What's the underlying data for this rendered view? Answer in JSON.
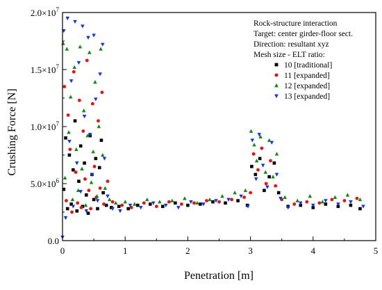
{
  "chart_data": {
    "type": "scatter",
    "title": "",
    "xlabel": "Penetration [m]",
    "ylabel": "Crushing Force [N]",
    "xlim": [
      0,
      5
    ],
    "ylim": [
      0,
      20000000
    ],
    "x_ticks": [
      {
        "value": 0,
        "label": "0"
      },
      {
        "value": 1,
        "label": "1"
      },
      {
        "value": 2,
        "label": "2"
      },
      {
        "value": 3,
        "label": "3"
      },
      {
        "value": 4,
        "label": "4"
      },
      {
        "value": 5,
        "label": "5"
      }
    ],
    "y_ticks": [
      {
        "value": 0,
        "mantissa": "0.0",
        "exp": ""
      },
      {
        "value": 5000000,
        "mantissa": "5.0×10",
        "exp": "6"
      },
      {
        "value": 10000000,
        "mantissa": "1.0×10",
        "exp": "7"
      },
      {
        "value": 15000000,
        "mantissa": "1.5×10",
        "exp": "7"
      },
      {
        "value": 20000000,
        "mantissa": "2.0×10",
        "exp": "7"
      }
    ],
    "grid": false,
    "legend_position": "top-right",
    "annotation_lines": [
      "Rock-structure interaction",
      "Target: center girder-floor sect.",
      "Direction: resultant xyz",
      "Mesh size - ELT ratio:"
    ],
    "series": [
      {
        "name": "10 [traditional]",
        "color": "#000000",
        "marker": "square",
        "x": [
          0.02,
          0.05,
          0.08,
          0.11,
          0.14,
          0.17,
          0.2,
          0.23,
          0.26,
          0.29,
          0.32,
          0.35,
          0.38,
          0.41,
          0.44,
          0.47,
          0.5,
          0.53,
          0.56,
          0.59,
          0.62,
          0.65,
          0.7,
          0.78,
          0.9,
          1.05,
          1.2,
          1.4,
          1.6,
          1.8,
          2.0,
          2.2,
          2.4,
          2.6,
          2.8,
          2.95,
          3.02,
          3.08,
          3.15,
          3.22,
          3.3,
          3.38,
          3.45,
          3.6,
          3.8,
          4.0,
          4.2,
          4.4,
          4.6,
          4.75
        ],
        "y": [
          4500000,
          9000000,
          2800000,
          7500000,
          3200000,
          6200000,
          10500000,
          2600000,
          5200000,
          8300000,
          3000000,
          6800000,
          4000000,
          2400000,
          9200000,
          5800000,
          3600000,
          7200000,
          2800000,
          6400000,
          8800000,
          4200000,
          3100000,
          2900000,
          3000000,
          2800000,
          3100000,
          3200000,
          3000000,
          3300000,
          3100000,
          3200000,
          3400000,
          3300000,
          3500000,
          3100000,
          6500000,
          5800000,
          7200000,
          4400000,
          5600000,
          6800000,
          4200000,
          3000000,
          3100000,
          2900000,
          3200000,
          3000000,
          3100000,
          2800000
        ]
      },
      {
        "name": "11 [expanded]",
        "color": "#ee1111",
        "marker": "circle",
        "x": [
          0.03,
          0.06,
          0.09,
          0.12,
          0.15,
          0.18,
          0.21,
          0.24,
          0.27,
          0.3,
          0.33,
          0.36,
          0.39,
          0.42,
          0.45,
          0.48,
          0.51,
          0.54,
          0.57,
          0.6,
          0.63,
          0.66,
          0.72,
          0.8,
          0.95,
          1.1,
          1.3,
          1.5,
          1.7,
          1.9,
          2.1,
          2.3,
          2.5,
          2.7,
          2.9,
          3.0,
          3.05,
          3.12,
          3.18,
          3.25,
          3.32,
          3.4,
          3.5,
          3.7,
          3.9,
          4.1,
          4.3,
          4.5,
          4.7
        ],
        "y": [
          13500000,
          3500000,
          11000000,
          8000000,
          2500000,
          14800000,
          6000000,
          3300000,
          12300000,
          2900000,
          9600000,
          5400000,
          15800000,
          4400000,
          2800000,
          12000000,
          6500000,
          3800000,
          10500000,
          4600000,
          13000000,
          3200000,
          5200000,
          3400000,
          3100000,
          2900000,
          3300000,
          3000000,
          3400000,
          3200000,
          3300000,
          3500000,
          3400000,
          3600000,
          3800000,
          4200000,
          7600000,
          6200000,
          8100000,
          5000000,
          7000000,
          4800000,
          3600000,
          3200000,
          3400000,
          3300000,
          3600000,
          3500000,
          3700000
        ]
      },
      {
        "name": "12 [expanded]",
        "color": "#118811",
        "marker": "triangle-up",
        "x": [
          0.01,
          0.04,
          0.07,
          0.1,
          0.13,
          0.16,
          0.19,
          0.22,
          0.25,
          0.28,
          0.31,
          0.34,
          0.37,
          0.4,
          0.43,
          0.46,
          0.49,
          0.52,
          0.55,
          0.58,
          0.61,
          0.64,
          0.68,
          0.75,
          0.85,
          1.0,
          1.15,
          1.35,
          1.55,
          1.75,
          1.95,
          2.15,
          2.35,
          2.55,
          2.75,
          2.92,
          3.01,
          3.06,
          3.1,
          3.16,
          3.24,
          3.3,
          3.36,
          3.42,
          3.55,
          3.75,
          3.95,
          4.15,
          4.35,
          4.55,
          4.75
        ],
        "y": [
          17300000,
          5500000,
          16800000,
          9500000,
          12600000,
          3600000,
          15200000,
          8000000,
          4400000,
          17000000,
          6300000,
          11400000,
          3100000,
          9200000,
          16500000,
          5100000,
          7800000,
          13900000,
          3900000,
          10000000,
          16800000,
          7500000,
          4600000,
          3600000,
          3300000,
          3400000,
          3200000,
          3600000,
          3400000,
          3500000,
          3700000,
          3300000,
          3600000,
          3900000,
          4200000,
          4400000,
          9600000,
          8400000,
          7000000,
          9100000,
          6000000,
          8800000,
          5600000,
          7600000,
          3800000,
          3500000,
          3900000,
          3400000,
          3800000,
          4000000,
          3600000
        ]
      },
      {
        "name": "13 [expanded]",
        "color": "#1133ee",
        "marker": "triangle-down",
        "x": [
          0.0,
          0.02,
          0.05,
          0.08,
          0.11,
          0.14,
          0.17,
          0.2,
          0.23,
          0.26,
          0.29,
          0.32,
          0.35,
          0.38,
          0.41,
          0.44,
          0.47,
          0.5,
          0.53,
          0.56,
          0.6,
          0.64,
          0.67,
          0.72,
          0.8,
          0.92,
          1.08,
          1.25,
          1.45,
          1.65,
          1.85,
          2.05,
          2.25,
          2.45,
          2.65,
          2.85,
          2.96,
          3.03,
          3.09,
          3.14,
          3.2,
          3.27,
          3.34,
          3.42,
          3.48,
          3.6,
          3.8,
          4.0,
          4.2,
          4.4,
          4.6,
          4.8
        ],
        "y": [
          300000,
          18400000,
          2000000,
          19500000,
          8700000,
          14000000,
          3000000,
          19200000,
          6800000,
          15600000,
          4300000,
          18800000,
          10900000,
          2600000,
          17800000,
          9300000,
          5800000,
          18000000,
          12400000,
          3500000,
          14600000,
          17200000,
          7200000,
          3900000,
          2800000,
          2600000,
          3100000,
          2900000,
          3300000,
          3100000,
          2900000,
          3400000,
          3200000,
          3500000,
          3600000,
          3900000,
          3000000,
          8800000,
          5400000,
          9300000,
          6600000,
          4700000,
          8600000,
          5800000,
          3700000,
          2900000,
          3300000,
          3100000,
          3500000,
          3200000,
          3400000,
          3000000
        ]
      }
    ]
  }
}
